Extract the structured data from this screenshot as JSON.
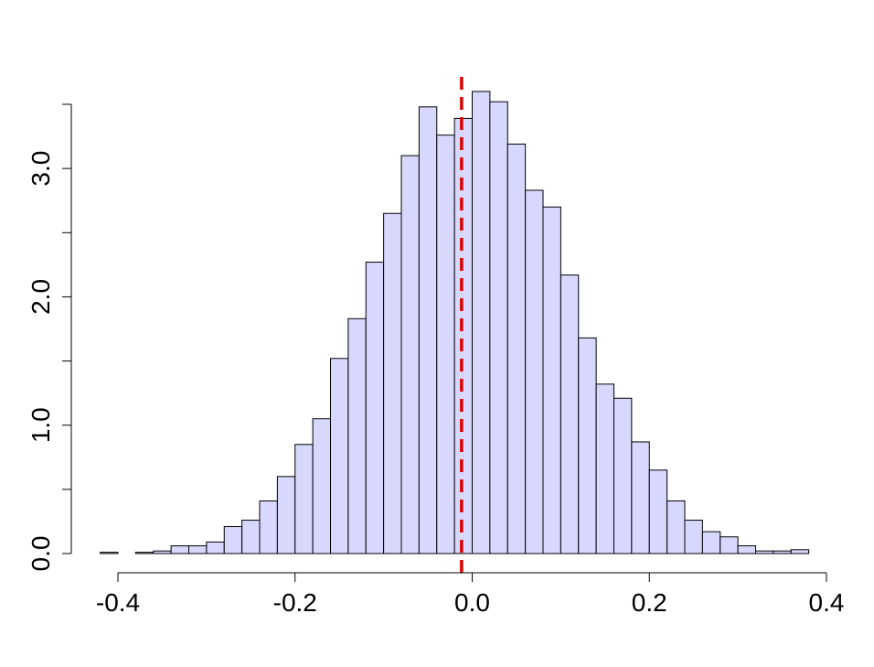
{
  "chart_data": {
    "type": "bar",
    "title": "",
    "xlabel": "",
    "ylabel": "",
    "xlim": [
      -0.42,
      0.4
    ],
    "ylim": [
      0,
      3.6
    ],
    "bin_start": -0.42,
    "bin_width": 0.02,
    "values": [
      0.01,
      0.0,
      0.01,
      0.02,
      0.06,
      0.06,
      0.09,
      0.21,
      0.26,
      0.41,
      0.6,
      0.85,
      1.05,
      1.52,
      1.83,
      2.27,
      2.65,
      3.1,
      3.48,
      3.26,
      3.39,
      3.6,
      3.52,
      3.19,
      2.83,
      2.7,
      2.17,
      1.68,
      1.32,
      1.21,
      0.87,
      0.65,
      0.41,
      0.26,
      0.17,
      0.13,
      0.06,
      0.02,
      0.02,
      0.03
    ],
    "x_ticks": [
      -0.4,
      -0.2,
      0.0,
      0.2,
      0.4
    ],
    "x_tick_labels": [
      "-0.4",
      "-0.2",
      "0.0",
      "0.2",
      "0.4"
    ],
    "y_ticks": [
      0,
      0.5,
      1.0,
      1.5,
      2.0,
      2.5,
      3.0,
      3.5
    ],
    "y_tick_labels": [
      "0.0",
      "",
      "1.0",
      "",
      "2.0",
      "",
      "3.0",
      ""
    ],
    "reference_line": {
      "x": -0.012,
      "style": "dashed"
    },
    "colors": {
      "bar_fill": "#d8d8ff",
      "bar_stroke": "#000000",
      "reference_line": "#dd0000"
    },
    "grid": false,
    "legend": "none"
  }
}
